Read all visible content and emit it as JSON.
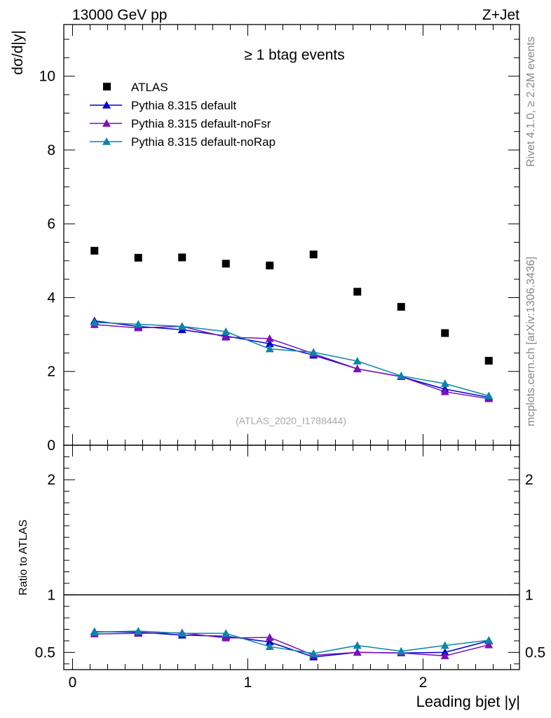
{
  "header": {
    "left": "13000 GeV pp",
    "right": "Z+Jet"
  },
  "side_labels": {
    "rivet": "Rivet 4.1.0, ≥ 2.2M events",
    "mcplots": "mcplots.cern.ch [arXiv:1306.3436]"
  },
  "chart_data": [
    {
      "type": "scatter",
      "panel": "main",
      "title": "≥ 1 btag events",
      "ylabel": "dσ/d|y|",
      "xlabel": "",
      "xlim": [
        -0.05,
        2.55
      ],
      "ylim": [
        0,
        11.4
      ],
      "yticks": [
        0,
        2,
        4,
        6,
        8,
        10
      ],
      "watermark": "(ATLAS_2020_I1788444)",
      "legend_position": "top-left",
      "x": [
        0.125,
        0.375,
        0.625,
        0.875,
        1.125,
        1.375,
        1.625,
        1.875,
        2.125,
        2.375
      ],
      "series": [
        {
          "name": "ATLAS",
          "color": "#000000",
          "marker": "square",
          "line": false,
          "values": [
            5.27,
            5.08,
            5.09,
            4.92,
            4.87,
            5.17,
            4.16,
            3.75,
            3.04,
            2.29
          ],
          "errors": [
            0,
            0,
            0,
            0,
            0,
            0,
            0,
            0,
            0,
            0
          ]
        },
        {
          "name": "Pythia 8.315 default",
          "color": "#0000cc",
          "marker": "triangle",
          "line": true,
          "values": [
            3.37,
            3.22,
            3.13,
            2.96,
            2.75,
            2.44,
            2.07,
            1.86,
            1.52,
            1.3
          ],
          "errors": [
            0.1,
            0.08,
            0.08,
            0.07,
            0.07,
            0.06,
            0.05,
            0.05,
            0.05,
            0.05
          ]
        },
        {
          "name": "Pythia 8.315 default-noFsr",
          "color": "#7a12b8",
          "marker": "triangle",
          "line": true,
          "values": [
            3.27,
            3.18,
            3.22,
            2.93,
            2.89,
            2.48,
            2.07,
            1.86,
            1.45,
            1.26
          ],
          "errors": [
            0.1,
            0.08,
            0.08,
            0.07,
            0.07,
            0.06,
            0.05,
            0.05,
            0.05,
            0.05
          ]
        },
        {
          "name": "Pythia 8.315 default-noRap",
          "color": "#0a86a8",
          "marker": "triangle",
          "line": true,
          "values": [
            3.33,
            3.28,
            3.22,
            3.08,
            2.61,
            2.52,
            2.28,
            1.88,
            1.67,
            1.34
          ],
          "errors": [
            0.1,
            0.08,
            0.08,
            0.07,
            0.07,
            0.06,
            0.05,
            0.05,
            0.05,
            0.05
          ]
        }
      ]
    },
    {
      "type": "line",
      "panel": "ratio",
      "ylabel": "Ratio to ATLAS",
      "xlabel": "Leading bjet |y|",
      "xlim": [
        -0.05,
        2.55
      ],
      "ylim": [
        0.35,
        2.3
      ],
      "xticks": [
        0,
        1,
        2
      ],
      "yticks": [
        0.5,
        1,
        2
      ],
      "reference": 1,
      "x": [
        0.125,
        0.375,
        0.625,
        0.875,
        1.125,
        1.375,
        1.625,
        1.875,
        2.125,
        2.375
      ],
      "series": [
        {
          "name": "Pythia 8.315 default",
          "color": "#0000cc",
          "values": [
            0.68,
            0.675,
            0.65,
            0.64,
            0.59,
            0.46,
            0.5,
            0.495,
            0.5,
            0.6
          ],
          "errors": [
            0.03,
            0.025,
            0.025,
            0.02,
            0.02,
            0.02,
            0.02,
            0.02,
            0.025,
            0.03
          ]
        },
        {
          "name": "Pythia 8.315 default-noFsr",
          "color": "#7a12b8",
          "values": [
            0.66,
            0.665,
            0.67,
            0.625,
            0.63,
            0.475,
            0.5,
            0.495,
            0.47,
            0.565
          ],
          "errors": [
            0.03,
            0.025,
            0.025,
            0.02,
            0.02,
            0.02,
            0.02,
            0.02,
            0.025,
            0.03
          ]
        },
        {
          "name": "Pythia 8.315 default-noRap",
          "color": "#0a86a8",
          "values": [
            0.675,
            0.685,
            0.665,
            0.665,
            0.55,
            0.49,
            0.56,
            0.51,
            0.56,
            0.605
          ],
          "errors": [
            0.03,
            0.025,
            0.025,
            0.02,
            0.02,
            0.02,
            0.02,
            0.02,
            0.025,
            0.03
          ]
        }
      ]
    }
  ]
}
